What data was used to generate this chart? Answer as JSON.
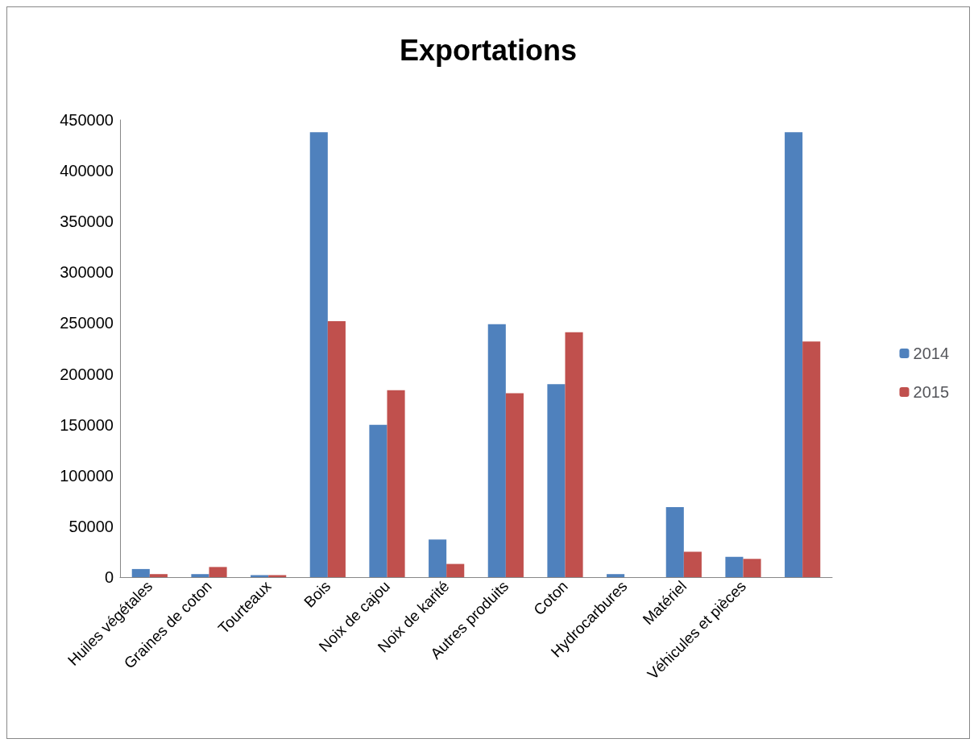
{
  "chart_data": {
    "type": "bar",
    "title": "Exportations",
    "categories": [
      "Huiles végétales",
      "Graines de coton",
      "Tourteaux",
      "Bois",
      "Noix de cajou",
      "Noix de karité",
      "Autres produits",
      "Coton",
      "Hydrocarbures",
      "Matériel",
      "Véhicules et pièces",
      null
    ],
    "series": [
      {
        "name": "2014",
        "color": "#4f81bd",
        "values": [
          8000,
          3000,
          2000,
          438000,
          150000,
          37000,
          249000,
          190000,
          3000,
          69000,
          20000,
          438000
        ]
      },
      {
        "name": "2015",
        "color": "#c0504d",
        "values": [
          3000,
          10000,
          2000,
          252000,
          184000,
          13000,
          181000,
          241000,
          null,
          25000,
          18000,
          232000
        ]
      }
    ],
    "ylim": [
      0,
      450000
    ],
    "yticks": [
      0,
      50000,
      100000,
      150000,
      200000,
      250000,
      300000,
      350000,
      400000,
      450000
    ],
    "grid": false,
    "legend": "right"
  }
}
